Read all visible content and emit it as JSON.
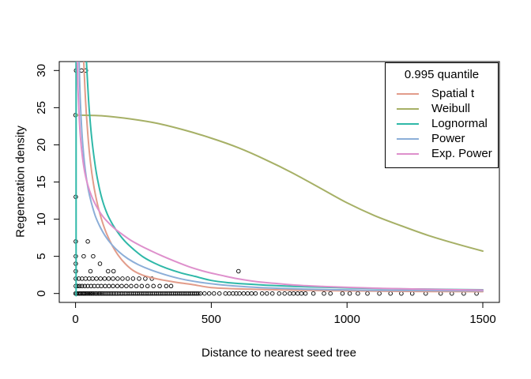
{
  "chart_data": {
    "type": "line+scatter",
    "title": "",
    "xlabel": "Distance to nearest seed tree",
    "ylabel": "Regeneration density",
    "xlim": [
      0,
      1500
    ],
    "ylim": [
      0,
      30
    ],
    "x_ticks": [
      0,
      500,
      1000,
      1500
    ],
    "y_ticks": [
      0,
      5,
      10,
      15,
      20,
      25,
      30
    ],
    "grid": false,
    "legend": {
      "title": "0.995 quantile",
      "position": "top-right"
    },
    "axis_color": "#000000",
    "series": [
      {
        "name": "Spatial t",
        "color": "#E29C8A",
        "segments": [
          [
            [
              30,
              31.4
            ],
            [
              36,
              26.5
            ],
            [
              43,
              22.5
            ],
            [
              51,
              19.0
            ],
            [
              60,
              16.2
            ],
            [
              71,
              13.7
            ],
            [
              84,
              11.5
            ],
            [
              99,
              9.6
            ],
            [
              116,
              7.9
            ],
            [
              136,
              6.4
            ],
            [
              158,
              5.1
            ],
            [
              183,
              4.0
            ],
            [
              212,
              3.1
            ],
            [
              245,
              2.5
            ],
            [
              282,
              2.1
            ],
            [
              324,
              1.8
            ],
            [
              372,
              1.5
            ],
            [
              430,
              1.2
            ],
            [
              500,
              0.8
            ],
            [
              580,
              0.65
            ],
            [
              670,
              0.55
            ],
            [
              770,
              0.47
            ],
            [
              880,
              0.4
            ],
            [
              1000,
              0.35
            ],
            [
              1150,
              0.3
            ],
            [
              1320,
              0.27
            ],
            [
              1500,
              0.24
            ]
          ]
        ]
      },
      {
        "name": "Weibull",
        "color": "#A6B066",
        "segments": [
          [
            [
              0,
              24.0
            ],
            [
              100,
              23.9
            ],
            [
              200,
              23.5
            ],
            [
              300,
              22.9
            ],
            [
              400,
              22.0
            ],
            [
              500,
              20.9
            ],
            [
              600,
              19.6
            ],
            [
              700,
              18.0
            ],
            [
              800,
              16.2
            ],
            [
              900,
              14.2
            ],
            [
              1000,
              12.2
            ],
            [
              1100,
              10.5
            ],
            [
              1200,
              9.1
            ],
            [
              1300,
              7.8
            ],
            [
              1400,
              6.7
            ],
            [
              1500,
              5.7
            ]
          ]
        ]
      },
      {
        "name": "Lognormal",
        "color": "#2FB8A8",
        "segments": [
          [
            [
              2,
              -0.3
            ],
            [
              2,
              31.4
            ]
          ],
          [
            [
              40,
              31.4
            ],
            [
              48,
              26.0
            ],
            [
              58,
              21.5
            ],
            [
              70,
              17.8
            ],
            [
              84,
              14.8
            ],
            [
              100,
              12.4
            ],
            [
              118,
              10.6
            ],
            [
              138,
              9.2
            ],
            [
              160,
              8.0
            ],
            [
              185,
              6.9
            ],
            [
              215,
              5.9
            ],
            [
              250,
              4.9
            ],
            [
              290,
              4.1
            ],
            [
              335,
              3.4
            ],
            [
              385,
              2.8
            ],
            [
              440,
              2.3
            ],
            [
              500,
              1.75
            ],
            [
              566,
              1.45
            ],
            [
              640,
              1.25
            ],
            [
              720,
              1.08
            ],
            [
              810,
              0.95
            ],
            [
              910,
              0.84
            ],
            [
              1020,
              0.74
            ],
            [
              1150,
              0.65
            ],
            [
              1320,
              0.57
            ],
            [
              1500,
              0.5
            ]
          ]
        ]
      },
      {
        "name": "Power",
        "color": "#8CAED8",
        "segments": [
          [
            [
              13,
              31.4
            ],
            [
              17,
              26.5
            ],
            [
              22,
              22.5
            ],
            [
              29,
              19.0
            ],
            [
              37,
              16.3
            ],
            [
              47,
              14.0
            ],
            [
              59,
              12.1
            ],
            [
              73,
              10.4
            ],
            [
              90,
              9.0
            ],
            [
              110,
              7.7
            ],
            [
              133,
              6.6
            ],
            [
              160,
              5.6
            ],
            [
              192,
              4.7
            ],
            [
              230,
              3.9
            ],
            [
              275,
              3.2
            ],
            [
              328,
              2.55
            ],
            [
              390,
              1.95
            ],
            [
              460,
              1.5
            ],
            [
              540,
              1.15
            ],
            [
              630,
              0.9
            ],
            [
              730,
              0.72
            ],
            [
              840,
              0.6
            ],
            [
              960,
              0.5
            ],
            [
              1100,
              0.44
            ],
            [
              1290,
              0.4
            ],
            [
              1500,
              0.36
            ]
          ]
        ]
      },
      {
        "name": "Exp. Power",
        "color": "#DE90CC",
        "segments": [
          [
            [
              6,
              31.4
            ],
            [
              9,
              27.5
            ],
            [
              13,
              24.0
            ],
            [
              18,
              21.0
            ],
            [
              25,
              18.5
            ],
            [
              34,
              16.3
            ],
            [
              45,
              14.6
            ],
            [
              59,
              13.1
            ],
            [
              76,
              11.8
            ],
            [
              96,
              10.6
            ],
            [
              119,
              9.6
            ],
            [
              145,
              8.7
            ],
            [
              174,
              7.9
            ],
            [
              206,
              7.1
            ],
            [
              241,
              6.4
            ],
            [
              280,
              5.7
            ],
            [
              322,
              5.0
            ],
            [
              368,
              4.3
            ],
            [
              418,
              3.6
            ],
            [
              472,
              3.0
            ],
            [
              530,
              2.5
            ],
            [
              595,
              2.0
            ],
            [
              665,
              1.6
            ],
            [
              740,
              1.35
            ],
            [
              820,
              1.1
            ],
            [
              910,
              0.95
            ],
            [
              1010,
              0.82
            ],
            [
              1130,
              0.68
            ],
            [
              1300,
              0.56
            ],
            [
              1500,
              0.46
            ]
          ]
        ]
      }
    ],
    "scatter": {
      "marker": "open-circle",
      "color": "#000000",
      "rows": [
        {
          "y": 30,
          "x": [
            2,
            22,
            38
          ]
        },
        {
          "y": 24,
          "x": [
            0
          ]
        },
        {
          "y": 13,
          "x": [
            1
          ]
        },
        {
          "y": 7,
          "x": [
            1,
            45
          ]
        },
        {
          "y": 5,
          "x": [
            1,
            30,
            65
          ]
        },
        {
          "y": 4,
          "x": [
            1,
            90
          ]
        },
        {
          "y": 3,
          "x": [
            1,
            55,
            120,
            140,
            600
          ]
        },
        {
          "y": 2,
          "x": [
            1,
            12,
            24,
            37,
            50,
            63,
            77,
            92,
            107,
            122,
            138,
            155,
            173,
            192,
            212,
            234,
            257,
            281
          ]
        },
        {
          "y": 1,
          "x": [
            1,
            7,
            15,
            24,
            34,
            45,
            57,
            69,
            82,
            95,
            109,
            123,
            138,
            154,
            170,
            187,
            205,
            224,
            244,
            265,
            287,
            310,
            334,
            352
          ]
        },
        {
          "y": 0,
          "x": [
            0,
            4,
            9,
            14,
            18,
            23,
            28,
            32,
            37,
            42,
            47,
            52,
            57,
            62,
            67,
            73,
            78,
            84,
            89,
            95,
            100,
            106,
            112,
            118,
            124,
            130,
            136,
            142,
            148,
            154,
            160,
            167,
            173,
            180,
            186,
            193,
            200,
            207,
            214,
            221,
            228,
            235,
            242,
            249,
            256,
            263,
            270,
            277,
            284,
            291,
            298,
            305,
            312,
            319,
            326,
            333,
            340,
            347,
            354,
            361,
            368,
            375,
            382,
            389,
            396,
            403,
            410,
            417,
            424,
            431,
            438,
            445,
            452,
            460,
            475,
            492,
            510,
            530,
            552,
            566,
            580,
            592,
            604,
            619,
            634,
            648,
            663,
            687,
            705,
            725,
            750,
            770,
            789,
            803,
            818,
            832,
            847,
            876,
            915,
            939,
            983,
            1010,
            1040,
            1075,
            1119,
            1160,
            1200,
            1240,
            1290,
            1345,
            1386,
            1430,
            1477
          ]
        }
      ]
    }
  }
}
